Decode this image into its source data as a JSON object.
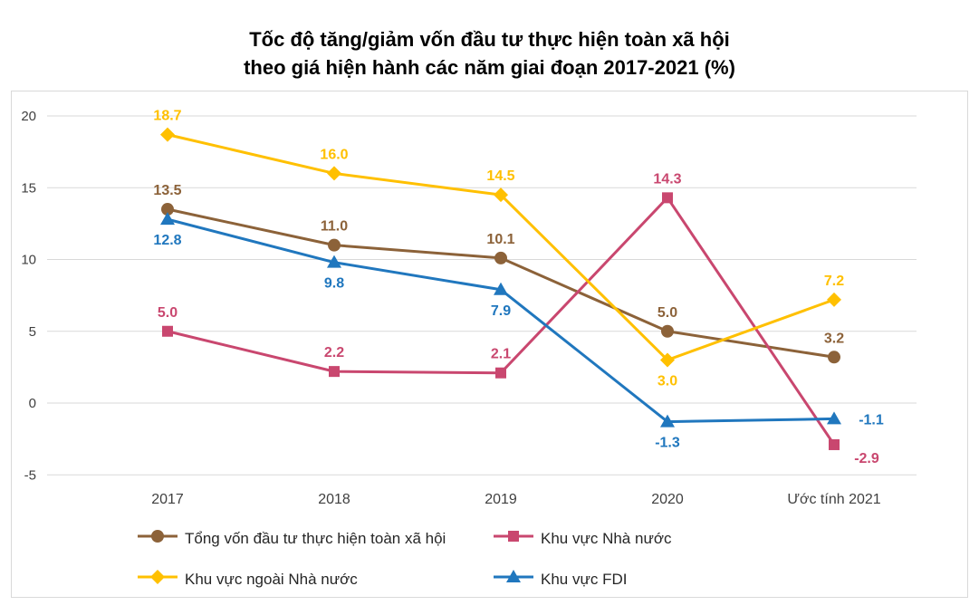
{
  "title": {
    "line1": "Tốc độ tăng/giảm vốn đầu tư thực hiện toàn xã hội",
    "line2": "theo giá hiện hành các năm giai đoạn 2017-2021 (%)"
  },
  "chart_data": {
    "type": "line",
    "categories": [
      "2017",
      "2018",
      "2019",
      "2020",
      "Ước tính 2021"
    ],
    "series": [
      {
        "name": "Tổng vốn đầu tư thực hiện toàn xã hội",
        "color": "#8C6239",
        "marker": "circle",
        "values": [
          13.5,
          11.0,
          10.1,
          5.0,
          3.2
        ]
      },
      {
        "name": "Khu vực Nhà nước",
        "color": "#C9476F",
        "marker": "square",
        "values": [
          5.0,
          2.2,
          2.1,
          14.3,
          -2.9
        ]
      },
      {
        "name": "Khu vực ngoài Nhà nước",
        "color": "#FFC000",
        "marker": "diamond",
        "values": [
          18.7,
          16.0,
          14.5,
          3.0,
          7.2
        ]
      },
      {
        "name": "Khu vực FDI",
        "color": "#2077BE",
        "marker": "triangle",
        "values": [
          12.8,
          9.8,
          7.9,
          -1.3,
          -1.1
        ]
      }
    ],
    "yticks": [
      20,
      15,
      10,
      5,
      0,
      -5
    ],
    "ylim": [
      -5,
      20
    ],
    "grid": "horizontal",
    "gridline_color": "#D9D9D9",
    "legend_position": "bottom",
    "data_labels": true
  }
}
